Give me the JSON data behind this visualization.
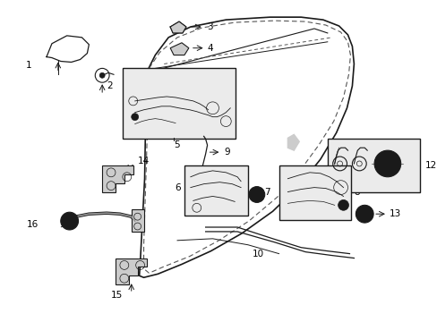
{
  "background_color": "#ffffff",
  "fig_width": 4.89,
  "fig_height": 3.6,
  "dpi": 100,
  "line_color": "#1a1a1a",
  "dash_color": "#555555",
  "door_outer": {
    "x": [
      0.37,
      0.39,
      0.42,
      0.47,
      0.53,
      0.6,
      0.67,
      0.73,
      0.77,
      0.8,
      0.82,
      0.83,
      0.83,
      0.82,
      0.8,
      0.77,
      0.73,
      0.68,
      0.62,
      0.56,
      0.5,
      0.44,
      0.39,
      0.36,
      0.34,
      0.33,
      0.33,
      0.34,
      0.35,
      0.36,
      0.37
    ],
    "y": [
      0.97,
      0.99,
      1.0,
      1.0,
      0.99,
      0.97,
      0.93,
      0.87,
      0.8,
      0.72,
      0.63,
      0.53,
      0.42,
      0.32,
      0.23,
      0.15,
      0.09,
      0.05,
      0.02,
      0.01,
      0.01,
      0.03,
      0.06,
      0.1,
      0.16,
      0.23,
      0.31,
      0.41,
      0.52,
      0.65,
      0.97
    ]
  },
  "door_inner": {
    "x": [
      0.39,
      0.42,
      0.46,
      0.52,
      0.58,
      0.65,
      0.71,
      0.76,
      0.79,
      0.81,
      0.81,
      0.8,
      0.78,
      0.75,
      0.71,
      0.66,
      0.6,
      0.54,
      0.48,
      0.43,
      0.38,
      0.35,
      0.34,
      0.33,
      0.34,
      0.35,
      0.36,
      0.37,
      0.38,
      0.39
    ],
    "y": [
      0.94,
      0.96,
      0.97,
      0.97,
      0.96,
      0.93,
      0.89,
      0.83,
      0.76,
      0.68,
      0.58,
      0.48,
      0.38,
      0.29,
      0.21,
      0.14,
      0.09,
      0.05,
      0.03,
      0.02,
      0.03,
      0.07,
      0.12,
      0.19,
      0.27,
      0.36,
      0.47,
      0.58,
      0.73,
      0.94
    ]
  },
  "window_line": {
    "x": [
      0.37,
      0.42,
      0.5,
      0.6,
      0.68,
      0.74,
      0.78,
      0.8,
      0.79,
      0.76,
      0.72,
      0.66,
      0.59,
      0.53,
      0.47,
      0.42,
      0.38,
      0.36,
      0.37
    ],
    "y": [
      0.88,
      0.91,
      0.93,
      0.92,
      0.88,
      0.82,
      0.74,
      0.64,
      0.55,
      0.46,
      0.38,
      0.32,
      0.27,
      0.25,
      0.27,
      0.32,
      0.4,
      0.55,
      0.88
    ]
  }
}
